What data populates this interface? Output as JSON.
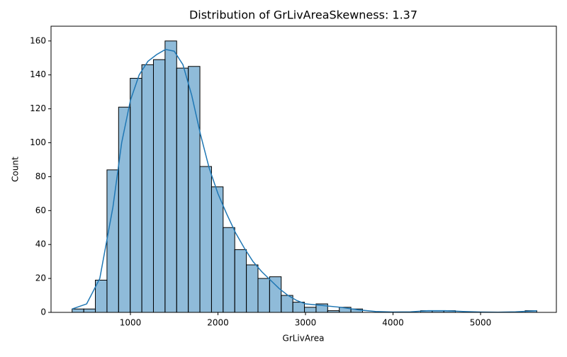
{
  "chart_data": {
    "type": "histogram",
    "title": "Distribution of GrLivAreaSkewness: 1.37",
    "x_label": "GrLivArea",
    "y_label": "Count",
    "bins": [
      334,
      466.7,
      599.4,
      732.1,
      864.8,
      997.5,
      1130.2,
      1262.9,
      1395.6,
      1528.3,
      1661,
      1793.7,
      1926.4,
      2059.1,
      2191.8,
      2324.5,
      2457.2,
      2589.9,
      2722.6,
      2855.3,
      2988,
      3120.7,
      3253.4,
      3386.1,
      3518.8,
      3651.5,
      3784.2,
      3916.9,
      4049.6,
      4182.3,
      4315,
      4447.7,
      4580.4,
      4713.1,
      4845.8,
      4978.5,
      5111.2,
      5243.9,
      5376.6,
      5509.3,
      5642
    ],
    "values": [
      2,
      2,
      19,
      84,
      121,
      138,
      146,
      149,
      160,
      144,
      145,
      86,
      74,
      50,
      37,
      28,
      20,
      21,
      10,
      6,
      3,
      5,
      1,
      3,
      2,
      0,
      0,
      0,
      0,
      0,
      1,
      1,
      1,
      0,
      0,
      0,
      0,
      0,
      0,
      1
    ],
    "color": "#1f77b4",
    "kde": {
      "x": [
        334,
        500,
        650,
        800,
        900,
        1000,
        1100,
        1200,
        1300,
        1400,
        1500,
        1600,
        1700,
        1800,
        1900,
        2000,
        2100,
        2200,
        2300,
        2400,
        2500,
        2600,
        2700,
        2800,
        2900,
        3000,
        3200,
        3400,
        3600,
        3800,
        4000,
        4200,
        4400,
        4600,
        4800,
        5000,
        5200,
        5400,
        5642
      ],
      "values": [
        2,
        5,
        20,
        62,
        100,
        125,
        140,
        148,
        152,
        155,
        154,
        146,
        128,
        105,
        85,
        70,
        58,
        47,
        38,
        30,
        24,
        19,
        14,
        10,
        7,
        5,
        4,
        3,
        1.5,
        0.5,
        0.2,
        0.3,
        1,
        1,
        0.5,
        0.2,
        0.1,
        0.3,
        1
      ]
    },
    "xlim": [
      93,
      5866
    ],
    "ylim": [
      0,
      168.7
    ],
    "xticks": [
      1000,
      2000,
      3000,
      4000,
      5000
    ],
    "yticks": [
      0,
      20,
      40,
      60,
      80,
      100,
      120,
      140,
      160
    ]
  }
}
